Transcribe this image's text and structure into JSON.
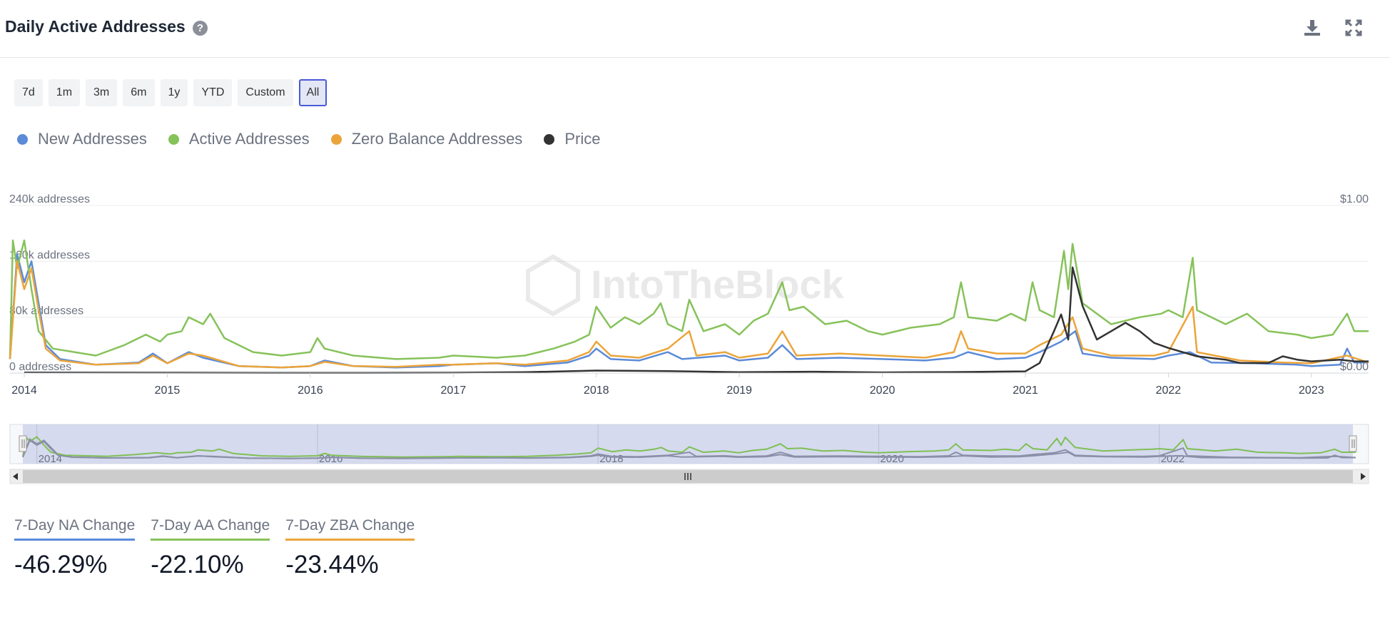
{
  "header": {
    "title": "Daily Active Addresses",
    "help_glyph": "?",
    "icons": [
      "download-icon",
      "fullscreen-icon"
    ]
  },
  "ranges": [
    {
      "label": "7d",
      "active": false
    },
    {
      "label": "1m",
      "active": false
    },
    {
      "label": "3m",
      "active": false
    },
    {
      "label": "6m",
      "active": false
    },
    {
      "label": "1y",
      "active": false
    },
    {
      "label": "YTD",
      "active": false
    },
    {
      "label": "Custom",
      "active": false
    },
    {
      "label": "All",
      "active": true
    }
  ],
  "watermark": "IntoTheBlock",
  "chart_data": {
    "type": "line",
    "title": "",
    "xlabel": "",
    "ylabel": "",
    "left_axis": {
      "ticks": [
        "0 addresses",
        "80k addresses",
        "160k addresses",
        "240k addresses"
      ],
      "values": [
        0,
        80000,
        160000,
        240000
      ],
      "ylim": [
        0,
        240000
      ]
    },
    "right_axis": {
      "ticks": [
        "$0.00",
        "$1.00"
      ],
      "values": [
        0,
        1
      ],
      "ylim": [
        0,
        1
      ]
    },
    "x_ticks": [
      "2014",
      "2015",
      "2016",
      "2017",
      "2018",
      "2019",
      "2020",
      "2021",
      "2022",
      "2023"
    ],
    "x_tick_years": [
      2014,
      2015,
      2016,
      2017,
      2018,
      2019,
      2020,
      2021,
      2022,
      2023
    ],
    "xlim": [
      2013.9,
      2023.4
    ],
    "navigator_ticks": [
      "2014",
      "2016",
      "2018",
      "2020",
      "2022"
    ],
    "navigator_years": [
      2014,
      2016,
      2018,
      2020,
      2022
    ],
    "grid": true,
    "legend_position": "top-left",
    "series": [
      {
        "name": "New Addresses",
        "color": "#5b8bd9",
        "axis": "left",
        "points": [
          [
            2013.9,
            20000
          ],
          [
            2013.95,
            170000
          ],
          [
            2014.0,
            130000
          ],
          [
            2014.05,
            160000
          ],
          [
            2014.1,
            100000
          ],
          [
            2014.15,
            40000
          ],
          [
            2014.25,
            20000
          ],
          [
            2014.5,
            12000
          ],
          [
            2014.8,
            15000
          ],
          [
            2014.9,
            28000
          ],
          [
            2015.0,
            14000
          ],
          [
            2015.15,
            30000
          ],
          [
            2015.25,
            22000
          ],
          [
            2015.5,
            10000
          ],
          [
            2015.8,
            8000
          ],
          [
            2016.0,
            10000
          ],
          [
            2016.1,
            18000
          ],
          [
            2016.3,
            10000
          ],
          [
            2016.6,
            8000
          ],
          [
            2016.9,
            10000
          ],
          [
            2017.0,
            12000
          ],
          [
            2017.3,
            14000
          ],
          [
            2017.5,
            10000
          ],
          [
            2017.8,
            15000
          ],
          [
            2017.95,
            25000
          ],
          [
            2018.0,
            35000
          ],
          [
            2018.1,
            20000
          ],
          [
            2018.3,
            18000
          ],
          [
            2018.5,
            30000
          ],
          [
            2018.6,
            20000
          ],
          [
            2018.9,
            25000
          ],
          [
            2019.0,
            18000
          ],
          [
            2019.2,
            22000
          ],
          [
            2019.3,
            40000
          ],
          [
            2019.4,
            20000
          ],
          [
            2019.7,
            22000
          ],
          [
            2020.0,
            20000
          ],
          [
            2020.3,
            18000
          ],
          [
            2020.5,
            22000
          ],
          [
            2020.6,
            30000
          ],
          [
            2020.8,
            20000
          ],
          [
            2021.0,
            22000
          ],
          [
            2021.1,
            30000
          ],
          [
            2021.25,
            45000
          ],
          [
            2021.35,
            60000
          ],
          [
            2021.4,
            28000
          ],
          [
            2021.6,
            22000
          ],
          [
            2021.9,
            20000
          ],
          [
            2022.0,
            25000
          ],
          [
            2022.15,
            30000
          ],
          [
            2022.3,
            15000
          ],
          [
            2022.6,
            14000
          ],
          [
            2022.9,
            12000
          ],
          [
            2023.0,
            10000
          ],
          [
            2023.2,
            12000
          ],
          [
            2023.25,
            35000
          ],
          [
            2023.3,
            15000
          ],
          [
            2023.4,
            15000
          ]
        ]
      },
      {
        "name": "Active Addresses",
        "color": "#86c25a",
        "axis": "left",
        "points": [
          [
            2013.9,
            20000
          ],
          [
            2013.92,
            190000
          ],
          [
            2013.95,
            150000
          ],
          [
            2014.0,
            190000
          ],
          [
            2014.05,
            120000
          ],
          [
            2014.1,
            60000
          ],
          [
            2014.2,
            35000
          ],
          [
            2014.35,
            30000
          ],
          [
            2014.5,
            25000
          ],
          [
            2014.7,
            40000
          ],
          [
            2014.85,
            55000
          ],
          [
            2014.95,
            45000
          ],
          [
            2015.0,
            55000
          ],
          [
            2015.1,
            60000
          ],
          [
            2015.15,
            80000
          ],
          [
            2015.25,
            70000
          ],
          [
            2015.3,
            85000
          ],
          [
            2015.4,
            50000
          ],
          [
            2015.6,
            30000
          ],
          [
            2015.8,
            25000
          ],
          [
            2016.0,
            30000
          ],
          [
            2016.05,
            50000
          ],
          [
            2016.1,
            35000
          ],
          [
            2016.3,
            25000
          ],
          [
            2016.6,
            20000
          ],
          [
            2016.9,
            22000
          ],
          [
            2017.0,
            25000
          ],
          [
            2017.3,
            22000
          ],
          [
            2017.5,
            25000
          ],
          [
            2017.7,
            35000
          ],
          [
            2017.85,
            45000
          ],
          [
            2017.95,
            55000
          ],
          [
            2018.0,
            95000
          ],
          [
            2018.1,
            65000
          ],
          [
            2018.2,
            80000
          ],
          [
            2018.3,
            70000
          ],
          [
            2018.4,
            85000
          ],
          [
            2018.45,
            100000
          ],
          [
            2018.5,
            70000
          ],
          [
            2018.6,
            60000
          ],
          [
            2018.65,
            105000
          ],
          [
            2018.75,
            60000
          ],
          [
            2018.9,
            70000
          ],
          [
            2019.0,
            55000
          ],
          [
            2019.1,
            75000
          ],
          [
            2019.2,
            85000
          ],
          [
            2019.3,
            130000
          ],
          [
            2019.35,
            90000
          ],
          [
            2019.45,
            95000
          ],
          [
            2019.6,
            70000
          ],
          [
            2019.75,
            75000
          ],
          [
            2019.9,
            60000
          ],
          [
            2020.0,
            55000
          ],
          [
            2020.2,
            65000
          ],
          [
            2020.4,
            70000
          ],
          [
            2020.5,
            80000
          ],
          [
            2020.55,
            130000
          ],
          [
            2020.6,
            80000
          ],
          [
            2020.8,
            75000
          ],
          [
            2020.9,
            85000
          ],
          [
            2021.0,
            75000
          ],
          [
            2021.05,
            130000
          ],
          [
            2021.1,
            90000
          ],
          [
            2021.2,
            80000
          ],
          [
            2021.27,
            175000
          ],
          [
            2021.3,
            120000
          ],
          [
            2021.33,
            185000
          ],
          [
            2021.4,
            100000
          ],
          [
            2021.6,
            70000
          ],
          [
            2021.8,
            80000
          ],
          [
            2021.95,
            85000
          ],
          [
            2022.0,
            90000
          ],
          [
            2022.1,
            80000
          ],
          [
            2022.17,
            165000
          ],
          [
            2022.2,
            90000
          ],
          [
            2022.4,
            70000
          ],
          [
            2022.55,
            85000
          ],
          [
            2022.7,
            60000
          ],
          [
            2022.9,
            55000
          ],
          [
            2023.0,
            50000
          ],
          [
            2023.15,
            55000
          ],
          [
            2023.25,
            85000
          ],
          [
            2023.3,
            60000
          ],
          [
            2023.4,
            60000
          ]
        ]
      },
      {
        "name": "Zero Balance Addresses",
        "color": "#eba43a",
        "axis": "left",
        "points": [
          [
            2013.9,
            20000
          ],
          [
            2013.95,
            160000
          ],
          [
            2014.0,
            120000
          ],
          [
            2014.05,
            150000
          ],
          [
            2014.1,
            90000
          ],
          [
            2014.15,
            35000
          ],
          [
            2014.25,
            18000
          ],
          [
            2014.5,
            12000
          ],
          [
            2014.8,
            14000
          ],
          [
            2014.9,
            25000
          ],
          [
            2015.0,
            14000
          ],
          [
            2015.15,
            28000
          ],
          [
            2015.25,
            25000
          ],
          [
            2015.5,
            10000
          ],
          [
            2015.8,
            8000
          ],
          [
            2016.0,
            10000
          ],
          [
            2016.1,
            16000
          ],
          [
            2016.3,
            10000
          ],
          [
            2016.6,
            9000
          ],
          [
            2016.9,
            12000
          ],
          [
            2017.0,
            12000
          ],
          [
            2017.3,
            14000
          ],
          [
            2017.5,
            12000
          ],
          [
            2017.8,
            18000
          ],
          [
            2017.95,
            30000
          ],
          [
            2018.0,
            45000
          ],
          [
            2018.1,
            25000
          ],
          [
            2018.3,
            22000
          ],
          [
            2018.5,
            35000
          ],
          [
            2018.65,
            60000
          ],
          [
            2018.7,
            25000
          ],
          [
            2018.9,
            30000
          ],
          [
            2019.0,
            22000
          ],
          [
            2019.2,
            28000
          ],
          [
            2019.3,
            60000
          ],
          [
            2019.4,
            25000
          ],
          [
            2019.7,
            28000
          ],
          [
            2020.0,
            25000
          ],
          [
            2020.3,
            22000
          ],
          [
            2020.5,
            30000
          ],
          [
            2020.55,
            60000
          ],
          [
            2020.6,
            35000
          ],
          [
            2020.8,
            28000
          ],
          [
            2021.0,
            28000
          ],
          [
            2021.1,
            40000
          ],
          [
            2021.25,
            55000
          ],
          [
            2021.33,
            80000
          ],
          [
            2021.4,
            35000
          ],
          [
            2021.6,
            25000
          ],
          [
            2021.9,
            25000
          ],
          [
            2022.0,
            30000
          ],
          [
            2022.17,
            95000
          ],
          [
            2022.2,
            30000
          ],
          [
            2022.5,
            18000
          ],
          [
            2022.8,
            15000
          ],
          [
            2023.0,
            14000
          ],
          [
            2023.25,
            25000
          ],
          [
            2023.4,
            15000
          ]
        ]
      },
      {
        "name": "Price",
        "color": "#333333",
        "axis": "right",
        "points": [
          [
            2014.0,
            0.003
          ],
          [
            2015.0,
            0.002
          ],
          [
            2016.0,
            0.001
          ],
          [
            2017.0,
            0.002
          ],
          [
            2017.5,
            0.005
          ],
          [
            2018.0,
            0.015
          ],
          [
            2018.5,
            0.012
          ],
          [
            2019.0,
            0.005
          ],
          [
            2019.5,
            0.008
          ],
          [
            2020.0,
            0.004
          ],
          [
            2020.5,
            0.006
          ],
          [
            2021.0,
            0.01
          ],
          [
            2021.1,
            0.06
          ],
          [
            2021.2,
            0.25
          ],
          [
            2021.25,
            0.35
          ],
          [
            2021.3,
            0.2
          ],
          [
            2021.33,
            0.63
          ],
          [
            2021.4,
            0.4
          ],
          [
            2021.5,
            0.2
          ],
          [
            2021.6,
            0.25
          ],
          [
            2021.7,
            0.3
          ],
          [
            2021.8,
            0.25
          ],
          [
            2021.9,
            0.18
          ],
          [
            2022.0,
            0.15
          ],
          [
            2022.2,
            0.1
          ],
          [
            2022.4,
            0.08
          ],
          [
            2022.5,
            0.06
          ],
          [
            2022.7,
            0.06
          ],
          [
            2022.8,
            0.1
          ],
          [
            2022.9,
            0.08
          ],
          [
            2023.0,
            0.07
          ],
          [
            2023.2,
            0.08
          ],
          [
            2023.3,
            0.07
          ],
          [
            2023.4,
            0.07
          ]
        ]
      }
    ]
  },
  "stats": [
    {
      "label": "7-Day NA Change",
      "value": "-46.29%",
      "color": "#5b8bd9"
    },
    {
      "label": "7-Day AA Change",
      "value": "-22.10%",
      "color": "#86c25a"
    },
    {
      "label": "7-Day ZBA Change",
      "value": "-23.44%",
      "color": "#eba43a"
    }
  ]
}
